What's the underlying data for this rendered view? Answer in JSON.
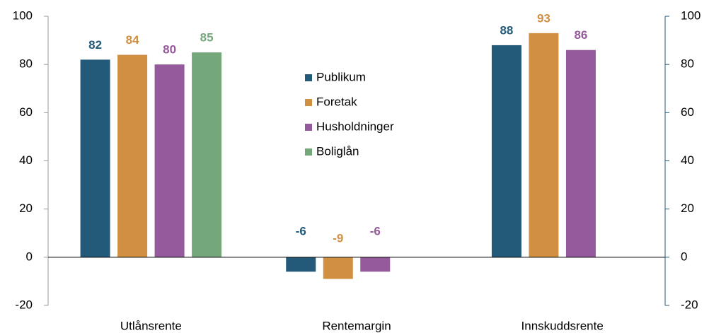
{
  "chart_data": {
    "type": "bar",
    "categories": [
      "Utlånsrente",
      "Rentemargin",
      "Innskuddsrente"
    ],
    "series": [
      {
        "name": "Publikum",
        "color": "#235a7a",
        "values": [
          82,
          -6,
          88
        ]
      },
      {
        "name": "Foretak",
        "color": "#d18f41",
        "values": [
          84,
          -9,
          93
        ]
      },
      {
        "name": "Husholdninger",
        "color": "#945a9b",
        "values": [
          80,
          -6,
          86
        ]
      },
      {
        "name": "Boliglån",
        "color": "#74a87a",
        "values": [
          85,
          null,
          null
        ]
      }
    ],
    "ylim": [
      -20,
      100
    ],
    "yticks": [
      -20,
      0,
      20,
      40,
      60,
      80,
      100
    ],
    "y2lim": [
      -20,
      100
    ],
    "y2ticks": [
      -20,
      0,
      20,
      40,
      60,
      80,
      100
    ],
    "grid": false,
    "legend": "center"
  }
}
